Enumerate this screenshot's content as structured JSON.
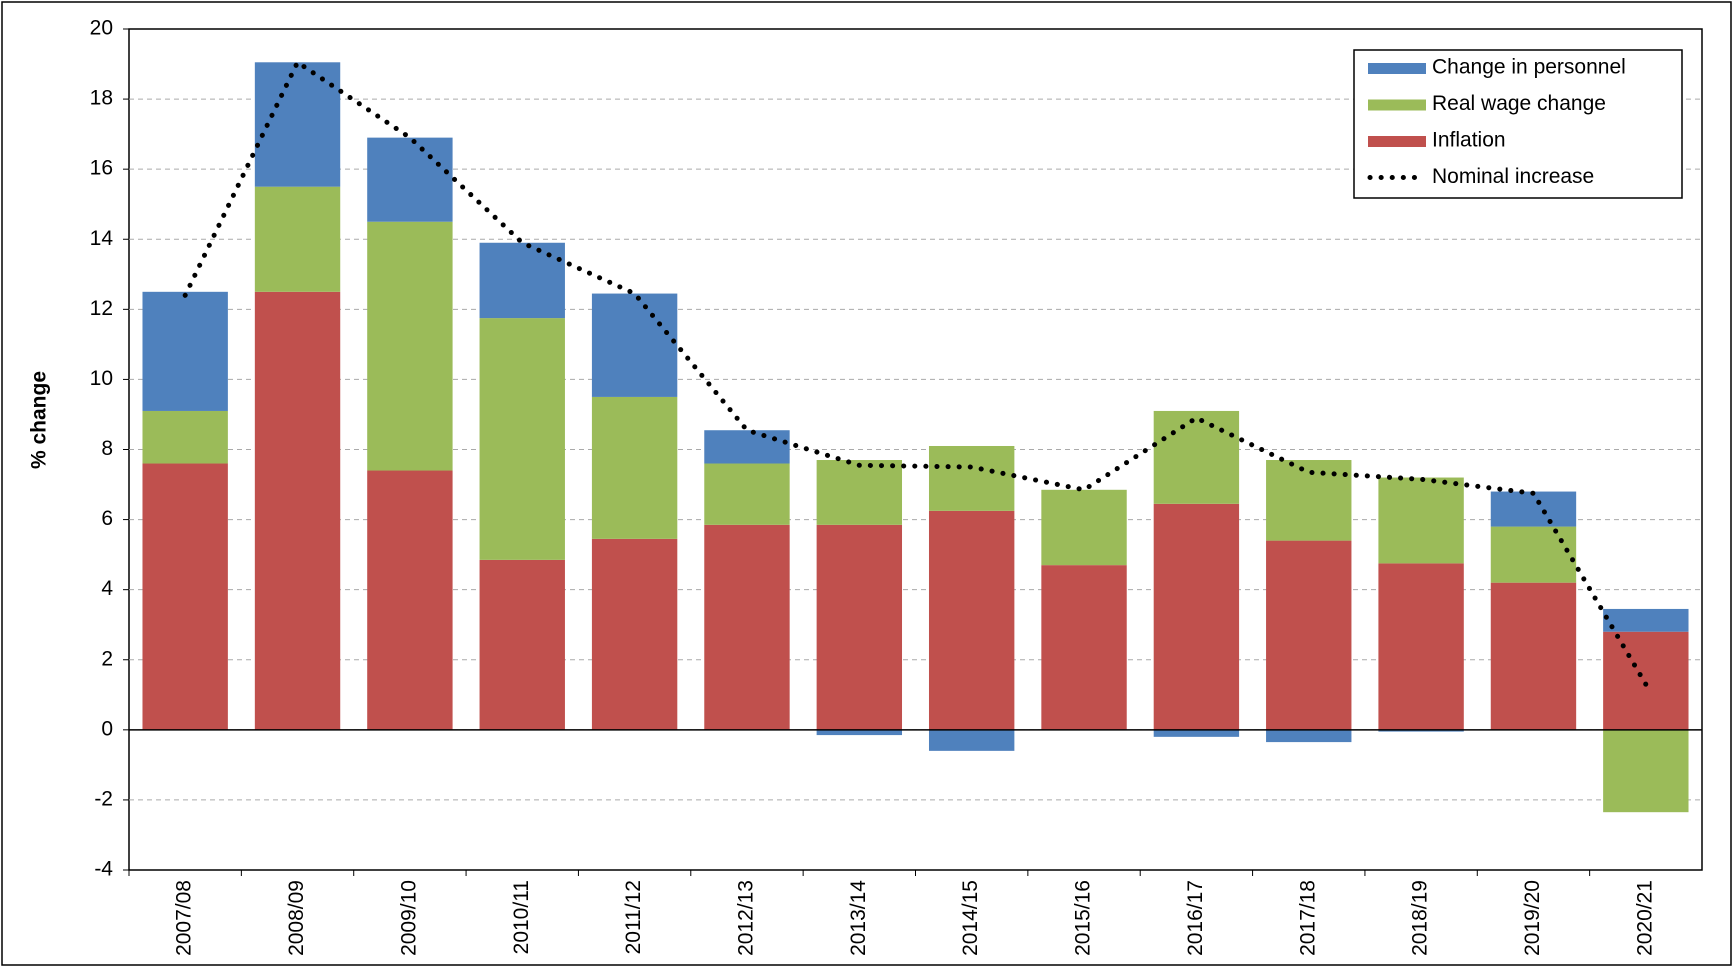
{
  "chart_data": {
    "type": "stacked-bar-line",
    "y_label": "% change",
    "categories": [
      "2007/08",
      "2008/09",
      "2009/10",
      "2010/11",
      "2011/12",
      "2012/13",
      "2013/14",
      "2014/15",
      "2015/16",
      "2016/17",
      "2017/18",
      "2018/19",
      "2019/20",
      "2020/21"
    ],
    "series": [
      {
        "name": "Inflation",
        "color": "#c0504d",
        "values": [
          7.6,
          12.5,
          7.4,
          4.85,
          5.45,
          5.85,
          5.85,
          6.25,
          4.7,
          6.45,
          5.4,
          4.75,
          4.2,
          2.8
        ]
      },
      {
        "name": "Real wage change",
        "color": "#9bbb59",
        "values": [
          1.5,
          3.0,
          7.1,
          6.9,
          4.05,
          1.75,
          1.85,
          1.85,
          2.15,
          2.65,
          2.3,
          2.45,
          1.6,
          -2.35
        ]
      },
      {
        "name": "Change in personnel",
        "color": "#4f81bd",
        "values": [
          3.4,
          3.55,
          2.4,
          2.15,
          2.95,
          0.95,
          -0.15,
          -0.6,
          0,
          -0.2,
          -0.35,
          -0.05,
          1.0,
          0.65
        ]
      },
      {
        "name": "Nominal increase",
        "color": "#000000",
        "type": "line",
        "dotted": true,
        "values": [
          12.4,
          19.05,
          16.9,
          13.9,
          12.45,
          8.55,
          7.55,
          7.5,
          6.85,
          8.9,
          7.35,
          7.15,
          6.75,
          1.3
        ]
      }
    ],
    "legend_order": [
      2,
      1,
      0,
      3
    ],
    "legend_position": "upper right",
    "ylim": [
      -4,
      20
    ],
    "yticks": [
      -4,
      -2,
      0,
      2,
      4,
      6,
      8,
      10,
      12,
      14,
      16,
      18,
      20
    ],
    "grid": true
  }
}
